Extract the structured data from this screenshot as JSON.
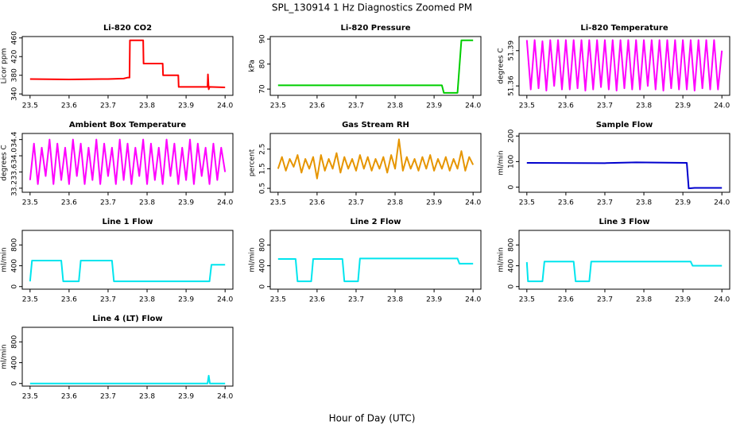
{
  "title": "SPL_130914  1 Hz Diagnostics Zoomed PM",
  "xlabel": "Hour of Day (UTC)",
  "chart_data": [
    {
      "type": "line",
      "title": "Li-820 CO2",
      "ylabel": "Licor ppm",
      "color": "#ff0000",
      "xlim": [
        23.48,
        24.02
      ],
      "xticks": [
        23.5,
        23.6,
        23.7,
        23.8,
        23.9,
        {
          "value": 24,
          "label": "24.0"
        }
      ],
      "ylim": [
        337,
        463
      ],
      "yticks": [
        340,
        380,
        420,
        460
      ],
      "x": [
        23.5,
        23.6,
        23.7,
        23.74,
        23.75,
        23.755,
        23.756,
        23.79,
        23.791,
        23.84,
        23.841,
        23.88,
        23.881,
        23.955,
        23.956,
        23.958,
        23.96,
        24.0
      ],
      "values": [
        372,
        371,
        372,
        373,
        375,
        375,
        455,
        455,
        405,
        405,
        380,
        380,
        355,
        355,
        382,
        350,
        355,
        354
      ]
    },
    {
      "type": "line",
      "title": "Li-820 Pressure",
      "ylabel": "kPa",
      "color": "#00cd00",
      "xlim": [
        23.48,
        24.02
      ],
      "xticks": [
        23.5,
        23.6,
        23.7,
        23.8,
        23.9,
        {
          "value": 24,
          "label": "24.0"
        }
      ],
      "ylim": [
        67.5,
        91
      ],
      "yticks": [
        70,
        80,
        90
      ],
      "x": [
        23.5,
        23.7,
        23.92,
        23.925,
        23.96,
        23.97,
        24.0
      ],
      "values": [
        71.5,
        71.5,
        71.5,
        68.5,
        68.5,
        89.5,
        89.5
      ]
    },
    {
      "type": "line",
      "title": "Li-820 Temperature",
      "ylabel": "degrees C",
      "color": "#ff00ff",
      "xlim": [
        23.48,
        24.02
      ],
      "xticks": [
        23.5,
        23.6,
        23.7,
        23.8,
        23.9,
        {
          "value": 24,
          "label": "24.0"
        }
      ],
      "ylim": [
        51.352,
        51.402
      ],
      "yticks": [
        51.36,
        51.39
      ],
      "x": [
        23.5,
        23.51,
        23.52,
        23.53,
        23.54,
        23.55,
        23.56,
        23.57,
        23.58,
        23.59,
        23.6,
        23.61,
        23.62,
        23.63,
        23.64,
        23.65,
        23.66,
        23.67,
        23.68,
        23.69,
        23.7,
        23.71,
        23.72,
        23.73,
        23.74,
        23.75,
        23.76,
        23.77,
        23.78,
        23.79,
        23.8,
        23.81,
        23.82,
        23.83,
        23.84,
        23.85,
        23.86,
        23.87,
        23.88,
        23.89,
        23.9,
        23.91,
        23.92,
        23.93,
        23.94,
        23.95,
        23.96,
        23.97,
        23.98,
        23.99,
        24.0
      ],
      "values": [
        51.399,
        51.357,
        51.399,
        51.358,
        51.398,
        51.356,
        51.399,
        51.36,
        51.399,
        51.357,
        51.399,
        51.357,
        51.399,
        51.358,
        51.399,
        51.356,
        51.399,
        51.357,
        51.399,
        51.359,
        51.399,
        51.357,
        51.399,
        51.356,
        51.399,
        51.358,
        51.399,
        51.357,
        51.399,
        51.357,
        51.399,
        51.36,
        51.399,
        51.357,
        51.399,
        51.356,
        51.399,
        51.358,
        51.399,
        51.357,
        51.399,
        51.357,
        51.399,
        51.356,
        51.399,
        51.358,
        51.399,
        51.357,
        51.399,
        51.357,
        51.39
      ]
    },
    {
      "type": "line",
      "title": "Ambient Box Temperature",
      "ylabel": "degrees C",
      "color": "#ff00ff",
      "xlim": [
        23.48,
        24.02
      ],
      "xticks": [
        23.5,
        23.6,
        23.7,
        23.8,
        23.9,
        {
          "value": 24,
          "label": "24.0"
        }
      ],
      "ylim": [
        33.1,
        34.55
      ],
      "yticks": [
        33.2,
        33.6,
        {
          "value": 34,
          "label": "34.0"
        },
        34.4
      ],
      "x": [
        23.5,
        23.51,
        23.52,
        23.53,
        23.54,
        23.55,
        23.56,
        23.57,
        23.58,
        23.59,
        23.6,
        23.61,
        23.62,
        23.63,
        23.64,
        23.65,
        23.66,
        23.67,
        23.68,
        23.69,
        23.7,
        23.71,
        23.72,
        23.73,
        23.74,
        23.75,
        23.76,
        23.77,
        23.78,
        23.79,
        23.8,
        23.81,
        23.82,
        23.83,
        23.84,
        23.85,
        23.86,
        23.87,
        23.88,
        23.89,
        23.9,
        23.91,
        23.92,
        23.93,
        23.94,
        23.95,
        23.96,
        23.97,
        23.98,
        23.99,
        24.0
      ],
      "values": [
        33.4,
        34.3,
        33.3,
        34.2,
        33.5,
        34.4,
        33.3,
        34.3,
        33.4,
        34.2,
        33.3,
        34.4,
        33.5,
        34.3,
        33.3,
        34.2,
        33.4,
        34.4,
        33.3,
        34.3,
        33.5,
        34.2,
        33.3,
        34.4,
        33.4,
        34.3,
        33.3,
        34.2,
        33.5,
        34.4,
        33.3,
        34.3,
        33.4,
        34.2,
        33.3,
        34.4,
        33.5,
        34.3,
        33.3,
        34.2,
        33.4,
        34.4,
        33.3,
        34.3,
        33.5,
        34.2,
        33.3,
        34.3,
        33.4,
        34.2,
        33.6
      ]
    },
    {
      "type": "line",
      "title": "Gas Stream RH",
      "ylabel": "percent",
      "color": "#e69500",
      "xlim": [
        23.48,
        24.02
      ],
      "xticks": [
        23.5,
        23.6,
        23.7,
        23.8,
        23.9,
        {
          "value": 24,
          "label": "24.0"
        }
      ],
      "ylim": [
        0.3,
        3.3
      ],
      "yticks": [
        0.5,
        1.5,
        2.5
      ],
      "x": [
        23.5,
        23.51,
        23.52,
        23.53,
        23.54,
        23.55,
        23.56,
        23.57,
        23.58,
        23.59,
        23.6,
        23.61,
        23.62,
        23.63,
        23.64,
        23.65,
        23.66,
        23.67,
        23.68,
        23.69,
        23.7,
        23.71,
        23.72,
        23.73,
        23.74,
        23.75,
        23.76,
        23.77,
        23.78,
        23.79,
        23.8,
        23.81,
        23.82,
        23.83,
        23.84,
        23.85,
        23.86,
        23.87,
        23.88,
        23.89,
        23.9,
        23.91,
        23.92,
        23.93,
        23.94,
        23.95,
        23.96,
        23.97,
        23.98,
        23.99,
        24.0
      ],
      "values": [
        1.5,
        2.1,
        1.4,
        2.0,
        1.6,
        2.2,
        1.3,
        2.0,
        1.5,
        2.1,
        1.0,
        2.2,
        1.4,
        2.0,
        1.5,
        2.3,
        1.3,
        2.1,
        1.5,
        2.0,
        1.4,
        2.2,
        1.5,
        2.1,
        1.4,
        2.0,
        1.5,
        2.1,
        1.3,
        2.2,
        1.5,
        3.0,
        1.4,
        2.1,
        1.5,
        2.0,
        1.4,
        2.1,
        1.5,
        2.2,
        1.4,
        2.0,
        1.5,
        2.1,
        1.4,
        2.0,
        1.5,
        2.4,
        1.4,
        2.1,
        1.7
      ]
    },
    {
      "type": "line",
      "title": "Sample Flow",
      "ylabel": "ml/min",
      "color": "#0000cd",
      "xlim": [
        23.48,
        24.02
      ],
      "xticks": [
        23.5,
        23.6,
        23.7,
        23.8,
        23.9,
        {
          "value": 24,
          "label": "24.0"
        }
      ],
      "ylim": [
        -20,
        210
      ],
      "yticks": [
        0,
        100,
        200
      ],
      "x": [
        23.5,
        23.7,
        23.78,
        23.91,
        23.915,
        23.93,
        24.0
      ],
      "values": [
        95,
        94,
        97,
        95,
        -5,
        -3,
        -3
      ]
    },
    {
      "type": "line",
      "title": "Line 1 Flow",
      "ylabel": "ml/min",
      "color": "#00e5ee",
      "xlim": [
        23.48,
        24.02
      ],
      "xticks": [
        23.5,
        23.6,
        23.7,
        23.8,
        23.9,
        {
          "value": 24,
          "label": "24.0"
        }
      ],
      "ylim": [
        -50,
        1080
      ],
      "yticks": [
        0,
        400,
        800
      ],
      "x": [
        23.5,
        23.505,
        23.58,
        23.585,
        23.625,
        23.63,
        23.71,
        23.715,
        23.96,
        23.965,
        24.0
      ],
      "values": [
        100,
        500,
        500,
        100,
        100,
        500,
        500,
        100,
        100,
        420,
        420
      ]
    },
    {
      "type": "line",
      "title": "Line 2 Flow",
      "ylabel": "ml/min",
      "color": "#00e5ee",
      "xlim": [
        23.48,
        24.02
      ],
      "xticks": [
        23.5,
        23.6,
        23.7,
        23.8,
        23.9,
        {
          "value": 24,
          "label": "24.0"
        }
      ],
      "ylim": [
        -50,
        1080
      ],
      "yticks": [
        0,
        400,
        800
      ],
      "x": [
        23.5,
        23.545,
        23.55,
        23.585,
        23.59,
        23.665,
        23.67,
        23.705,
        23.71,
        23.96,
        23.965,
        24.0
      ],
      "values": [
        530,
        530,
        100,
        100,
        530,
        530,
        100,
        100,
        540,
        540,
        440,
        440
      ]
    },
    {
      "type": "line",
      "title": "Line 3 Flow",
      "ylabel": "ml/min",
      "color": "#00e5ee",
      "xlim": [
        23.48,
        24.02
      ],
      "xticks": [
        23.5,
        23.6,
        23.7,
        23.8,
        23.9,
        {
          "value": 24,
          "label": "24.0"
        }
      ],
      "ylim": [
        -50,
        1080
      ],
      "yticks": [
        0,
        400,
        800
      ],
      "x": [
        23.5,
        23.503,
        23.54,
        23.545,
        23.62,
        23.625,
        23.66,
        23.665,
        23.92,
        23.925,
        24.0
      ],
      "values": [
        470,
        100,
        100,
        480,
        480,
        100,
        100,
        480,
        480,
        400,
        400
      ]
    },
    {
      "type": "line",
      "title": "Line 4 (LT) Flow",
      "ylabel": "ml/min",
      "color": "#00e5ee",
      "xlim": [
        23.48,
        24.02
      ],
      "xticks": [
        23.5,
        23.6,
        23.7,
        23.8,
        23.9,
        {
          "value": 24,
          "label": "24.0"
        }
      ],
      "ylim": [
        -50,
        1080
      ],
      "yticks": [
        0,
        400,
        800
      ],
      "x": [
        23.5,
        23.955,
        23.958,
        23.961,
        24.0
      ],
      "values": [
        0,
        0,
        150,
        0,
        0
      ]
    }
  ]
}
